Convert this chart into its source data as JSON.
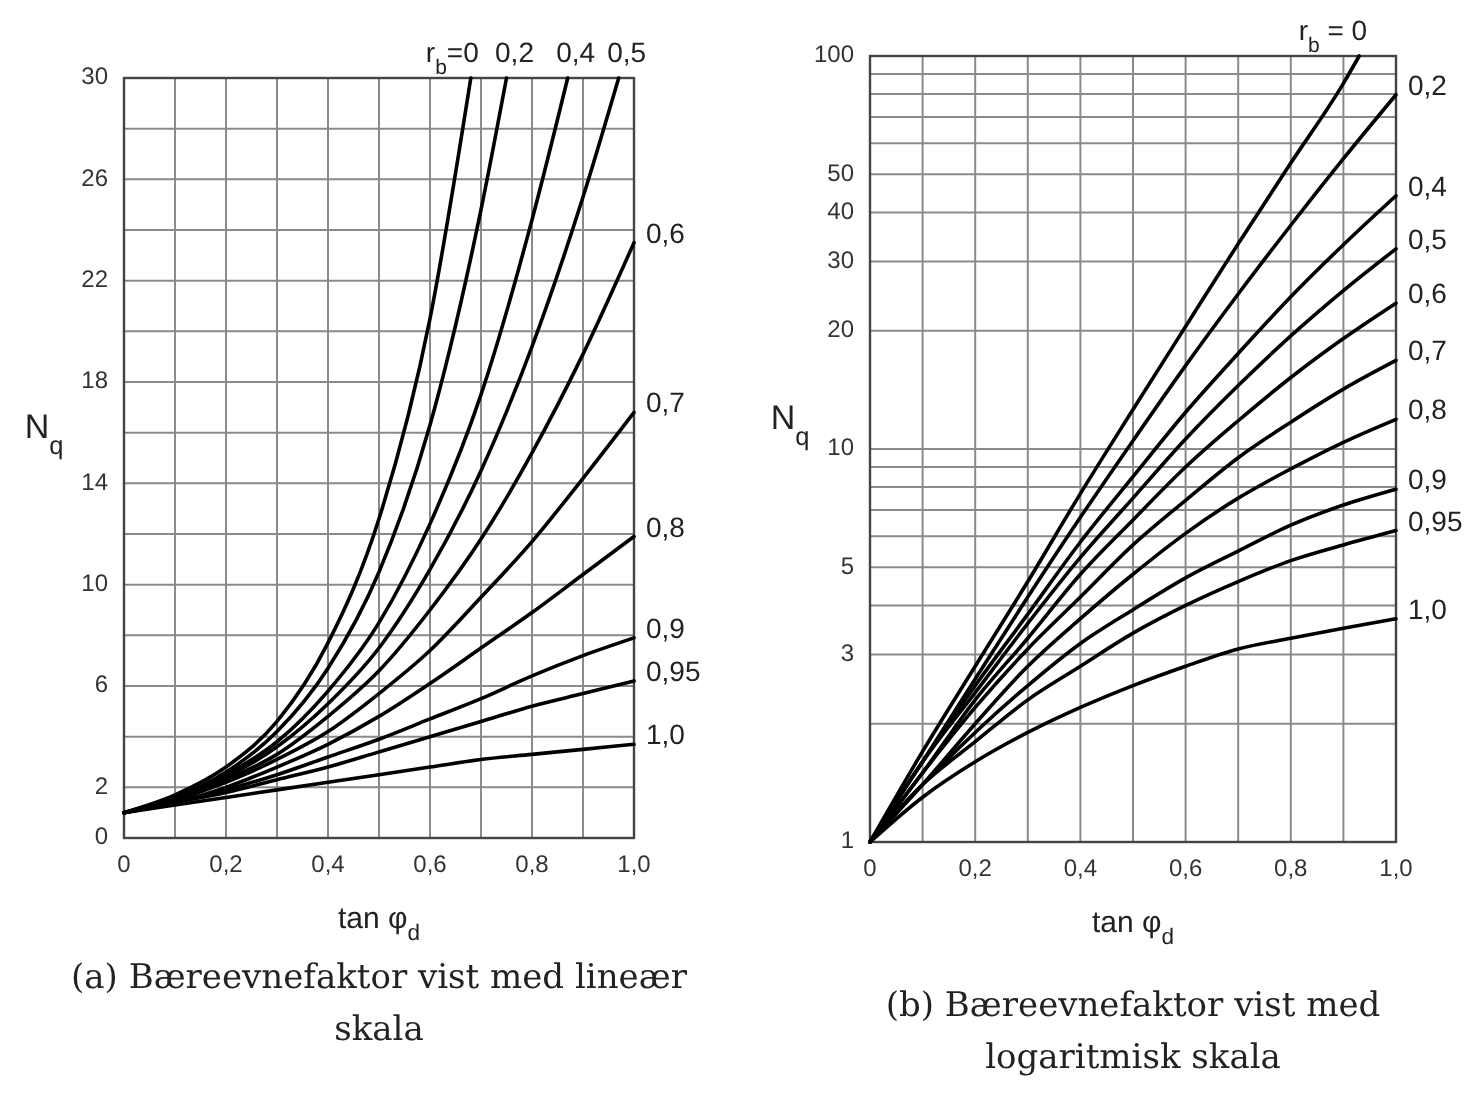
{
  "chart_data": [
    {
      "type": "line",
      "title": "(a) Bæreevnefaktor vist med lineær skala",
      "xlabel": "tan φ$_{d}$",
      "ylabel": "N$_{q}$",
      "xlim": [
        0,
        1
      ],
      "ylim": [
        0,
        30
      ],
      "grid": true,
      "xticks": [
        0,
        {
          "value": 0.1,
          "label": null
        },
        {
          "value": 0.2,
          "label": "0,2"
        },
        {
          "value": 0.3,
          "label": null
        },
        {
          "value": 0.4,
          "label": "0,4"
        },
        {
          "value": 0.5,
          "label": null
        },
        {
          "value": 0.6,
          "label": "0,6"
        },
        {
          "value": 0.7,
          "label": null
        },
        {
          "value": 0.8,
          "label": "0,8"
        },
        {
          "value": 0.9,
          "label": null
        },
        {
          "value": 1,
          "label": "1,0"
        }
      ],
      "yticks": [
        0,
        2,
        {
          "value": 4,
          "label": null
        },
        6,
        {
          "value": 8,
          "label": null
        },
        10,
        {
          "value": 12,
          "label": null
        },
        14,
        {
          "value": 16,
          "label": null
        },
        18,
        {
          "value": 20,
          "label": null
        },
        22,
        {
          "value": 24,
          "label": null
        },
        26,
        {
          "value": 28,
          "label": null
        },
        30
      ],
      "series": [
        {
          "name": "r$_{b}$=0",
          "color": "#000000",
          "x": [
            0,
            0.1,
            0.2,
            0.3,
            0.4,
            0.5,
            0.6,
            0.68
          ],
          "values": [
            1,
            1.7,
            2.8,
            4.6,
            7.7,
            12.6,
            20.5,
            30
          ]
        },
        {
          "name": "0,2",
          "color": "#000000",
          "x": [
            0,
            0.1,
            0.2,
            0.3,
            0.4,
            0.5,
            0.6,
            0.7,
            0.75
          ],
          "values": [
            1,
            1.6,
            2.6,
            4.2,
            6.7,
            10.5,
            16.3,
            24.8,
            30
          ]
        },
        {
          "name": "0,4",
          "color": "#000000",
          "x": [
            0,
            0.1,
            0.2,
            0.3,
            0.4,
            0.5,
            0.6,
            0.7,
            0.8,
            0.87
          ],
          "values": [
            1,
            1.6,
            2.5,
            3.8,
            5.8,
            8.5,
            12.4,
            17.5,
            24.4,
            30
          ]
        },
        {
          "name": "0,5",
          "color": "#000000",
          "x": [
            0,
            0.1,
            0.2,
            0.3,
            0.4,
            0.5,
            0.6,
            0.7,
            0.8,
            0.9,
            0.97
          ],
          "values": [
            1,
            1.6,
            2.4,
            3.6,
            5.3,
            7.5,
            10.6,
            14.5,
            19.4,
            25.3,
            30
          ]
        },
        {
          "name": "0,6",
          "color": "#000000",
          "x": [
            0,
            0.1,
            0.2,
            0.3,
            0.4,
            0.5,
            0.6,
            0.7,
            0.8,
            0.9,
            1
          ],
          "values": [
            1,
            1.5,
            2.3,
            3.3,
            4.8,
            6.6,
            9.0,
            11.8,
            15.2,
            19.1,
            23.5
          ]
        },
        {
          "name": "0,7",
          "color": "#000000",
          "x": [
            0,
            0.1,
            0.2,
            0.3,
            0.4,
            0.5,
            0.6,
            0.7,
            0.8,
            0.9,
            1
          ],
          "values": [
            1,
            1.5,
            2.2,
            3.1,
            4.2,
            5.7,
            7.4,
            9.5,
            11.7,
            14.2,
            16.8
          ]
        },
        {
          "name": "0,8",
          "color": "#000000",
          "x": [
            0,
            0.1,
            0.2,
            0.3,
            0.4,
            0.5,
            0.6,
            0.7,
            0.8,
            0.9,
            1
          ],
          "values": [
            1,
            1.4,
            2.0,
            2.8,
            3.7,
            4.8,
            6.1,
            7.5,
            8.9,
            10.4,
            11.9
          ]
        },
        {
          "name": "0,9",
          "color": "#000000",
          "x": [
            0,
            0.1,
            0.2,
            0.3,
            0.4,
            0.5,
            0.6,
            0.7,
            0.8,
            0.9,
            1
          ],
          "values": [
            1,
            1.4,
            1.9,
            2.5,
            3.2,
            3.9,
            4.7,
            5.5,
            6.4,
            7.2,
            7.9
          ]
        },
        {
          "name": "0,95",
          "color": "#000000",
          "x": [
            0,
            0.1,
            0.2,
            0.3,
            0.4,
            0.5,
            0.6,
            0.7,
            0.8,
            0.9,
            1
          ],
          "values": [
            1,
            1.4,
            1.8,
            2.3,
            2.8,
            3.4,
            4.0,
            4.6,
            5.2,
            5.7,
            6.2
          ]
        },
        {
          "name": "1,0",
          "color": "#000000",
          "x": [
            0,
            0.1,
            0.2,
            0.3,
            0.4,
            0.5,
            0.6,
            0.7,
            0.8,
            0.9,
            1
          ],
          "values": [
            1,
            1.3,
            1.6,
            1.9,
            2.2,
            2.5,
            2.8,
            3.1,
            3.3,
            3.5,
            3.7
          ]
        }
      ]
    },
    {
      "type": "line",
      "title": "(b) Bæreevnefaktor vist med logaritmisk skala",
      "xlabel": "tan φ$_{d}$",
      "ylabel": "N$_{q}$",
      "xlim": [
        0,
        1
      ],
      "ylim": [
        1,
        100
      ],
      "log": true,
      "grid": true,
      "xticks": [
        0,
        {
          "value": 0.1,
          "label": null
        },
        {
          "value": 0.2,
          "label": "0,2"
        },
        {
          "value": 0.3,
          "label": null
        },
        {
          "value": 0.4,
          "label": "0,4"
        },
        {
          "value": 0.5,
          "label": null
        },
        {
          "value": 0.6,
          "label": "0,6"
        },
        {
          "value": 0.7,
          "label": null
        },
        {
          "value": 0.8,
          "label": "0,8"
        },
        {
          "value": 0.9,
          "label": null
        },
        {
          "value": 1,
          "label": "1,0"
        }
      ],
      "yticks": [
        1,
        {
          "value": 2,
          "label": null
        },
        3,
        {
          "value": 4,
          "label": null
        },
        5,
        {
          "value": 6,
          "label": null
        },
        {
          "value": 7,
          "label": null
        },
        {
          "value": 8,
          "label": null
        },
        {
          "value": 9,
          "label": null
        },
        10,
        20,
        30,
        40,
        50,
        {
          "value": 60,
          "label": null
        },
        {
          "value": 70,
          "label": null
        },
        {
          "value": 80,
          "label": null
        },
        {
          "value": 90,
          "label": null
        },
        100
      ],
      "series": [
        {
          "name": "r$_{b}$ = 0",
          "color": "#000000",
          "x": [
            0,
            0.1,
            0.2,
            0.3,
            0.4,
            0.5,
            0.6,
            0.7,
            0.8,
            0.9,
            0.93
          ],
          "values": [
            1,
            1.7,
            2.8,
            4.6,
            7.7,
            12.6,
            20.5,
            33.3,
            53.4,
            85.2,
            100
          ]
        },
        {
          "name": "0,2",
          "color": "#000000",
          "x": [
            0,
            0.1,
            0.2,
            0.3,
            0.4,
            0.5,
            0.6,
            0.7,
            0.8,
            0.9,
            1
          ],
          "values": [
            1,
            1.6,
            2.6,
            4.2,
            6.7,
            10.5,
            16.3,
            24.8,
            37.1,
            54.8,
            79.7
          ]
        },
        {
          "name": "0,4",
          "color": "#000000",
          "x": [
            0,
            0.1,
            0.2,
            0.3,
            0.4,
            0.5,
            0.6,
            0.7,
            0.8,
            0.9,
            1
          ],
          "values": [
            1,
            1.6,
            2.5,
            3.8,
            5.8,
            8.5,
            12.4,
            17.5,
            24.4,
            33.1,
            44.1
          ]
        },
        {
          "name": "0,5",
          "color": "#000000",
          "x": [
            0,
            0.1,
            0.2,
            0.3,
            0.4,
            0.5,
            0.6,
            0.7,
            0.8,
            0.9,
            1
          ],
          "values": [
            1,
            1.6,
            2.4,
            3.6,
            5.3,
            7.5,
            10.6,
            14.5,
            19.4,
            25.3,
            32.3
          ]
        },
        {
          "name": "0,6",
          "color": "#000000",
          "x": [
            0,
            0.1,
            0.2,
            0.3,
            0.4,
            0.5,
            0.6,
            0.7,
            0.8,
            0.9,
            1
          ],
          "values": [
            1,
            1.5,
            2.3,
            3.3,
            4.8,
            6.6,
            9.0,
            11.8,
            15.2,
            19.1,
            23.5
          ]
        },
        {
          "name": "0,7",
          "color": "#000000",
          "x": [
            0,
            0.1,
            0.2,
            0.3,
            0.4,
            0.5,
            0.6,
            0.7,
            0.8,
            0.9,
            1
          ],
          "values": [
            1,
            1.5,
            2.2,
            3.1,
            4.2,
            5.7,
            7.4,
            9.5,
            11.7,
            14.2,
            16.8
          ]
        },
        {
          "name": "0,8",
          "color": "#000000",
          "x": [
            0,
            0.1,
            0.2,
            0.3,
            0.4,
            0.5,
            0.6,
            0.7,
            0.8,
            0.9,
            1
          ],
          "values": [
            1,
            1.4,
            2.0,
            2.8,
            3.7,
            4.8,
            6.1,
            7.5,
            8.9,
            10.4,
            11.9
          ]
        },
        {
          "name": "0,9",
          "color": "#000000",
          "x": [
            0,
            0.1,
            0.2,
            0.3,
            0.4,
            0.5,
            0.6,
            0.7,
            0.8,
            0.9,
            1
          ],
          "values": [
            1,
            1.4,
            1.9,
            2.5,
            3.2,
            3.9,
            4.7,
            5.5,
            6.4,
            7.2,
            7.9
          ]
        },
        {
          "name": "0,95",
          "color": "#000000",
          "x": [
            0,
            0.1,
            0.2,
            0.3,
            0.4,
            0.5,
            0.6,
            0.7,
            0.8,
            0.9,
            1
          ],
          "values": [
            1,
            1.4,
            1.8,
            2.3,
            2.8,
            3.4,
            4.0,
            4.6,
            5.2,
            5.7,
            6.2
          ]
        },
        {
          "name": "1,0",
          "color": "#000000",
          "x": [
            0,
            0.1,
            0.2,
            0.3,
            0.4,
            0.5,
            0.6,
            0.7,
            0.8,
            0.9,
            1
          ],
          "values": [
            1,
            1.3,
            1.6,
            1.9,
            2.2,
            2.5,
            2.8,
            3.1,
            3.3,
            3.5,
            3.7
          ]
        }
      ]
    }
  ]
}
